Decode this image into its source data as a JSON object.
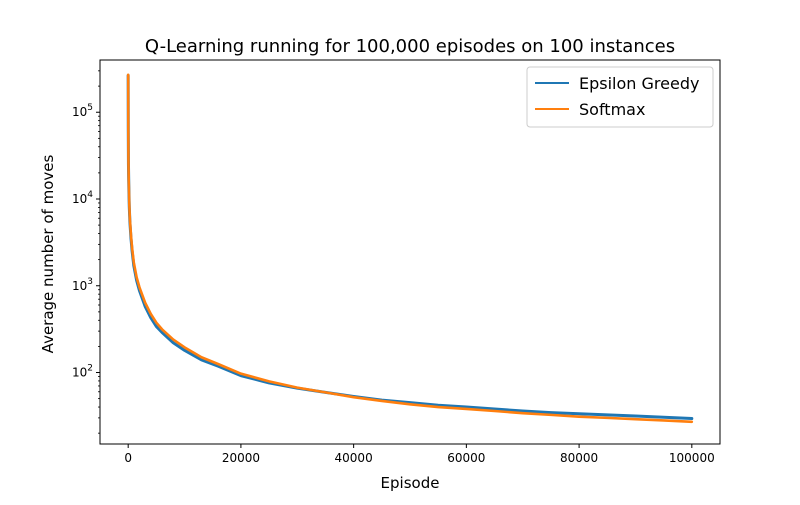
{
  "chart_data": {
    "type": "line",
    "title": "Q-Learning running for 100,000 episodes on 100 instances",
    "xlabel": "Episode",
    "ylabel": "Average number of moves",
    "yscale": "log",
    "xlim": [
      -5000,
      105000
    ],
    "ylim": [
      15,
      400000
    ],
    "xticks": [
      {
        "value": 0,
        "label": "0"
      },
      {
        "value": 20000,
        "label": "20000"
      },
      {
        "value": 40000,
        "label": "40000"
      },
      {
        "value": 60000,
        "label": "60000"
      },
      {
        "value": 80000,
        "label": "80000"
      },
      {
        "value": 100000,
        "label": "100000"
      }
    ],
    "yticks": [
      {
        "value": 100,
        "base": "10",
        "exp": "2"
      },
      {
        "value": 1000,
        "base": "10",
        "exp": "3"
      },
      {
        "value": 10000,
        "base": "10",
        "exp": "4"
      },
      {
        "value": 100000,
        "base": "10",
        "exp": "5"
      }
    ],
    "grid": false,
    "legend_position": "top-right",
    "series": [
      {
        "name": "Epsilon Greedy",
        "color": "#1f77b4",
        "x": [
          0,
          20,
          50,
          100,
          200,
          300,
          500,
          700,
          1000,
          1500,
          2000,
          3000,
          4000,
          5000,
          6000,
          8000,
          10000,
          13000,
          16000,
          20000,
          25000,
          30000,
          35000,
          40000,
          45000,
          50000,
          55000,
          60000,
          65000,
          70000,
          75000,
          80000,
          85000,
          90000,
          95000,
          100000
        ],
        "values": [
          265000,
          60000,
          25000,
          15000,
          8000,
          5500,
          3500,
          2500,
          1700,
          1150,
          880,
          580,
          430,
          340,
          290,
          220,
          180,
          140,
          118,
          92,
          76,
          66,
          59,
          53,
          48,
          45,
          42,
          40,
          38,
          36,
          34.5,
          33.5,
          32.5,
          31.5,
          30.5,
          29.5
        ]
      },
      {
        "name": "Softmax",
        "color": "#ff7f0e",
        "x": [
          0,
          20,
          50,
          100,
          200,
          300,
          500,
          700,
          1000,
          1500,
          2000,
          3000,
          4000,
          5000,
          6000,
          8000,
          10000,
          13000,
          16000,
          20000,
          25000,
          30000,
          35000,
          40000,
          45000,
          50000,
          55000,
          60000,
          65000,
          70000,
          75000,
          80000,
          85000,
          90000,
          95000,
          100000
        ],
        "values": [
          270000,
          62000,
          26000,
          16000,
          8500,
          5900,
          3800,
          2700,
          1850,
          1250,
          960,
          640,
          475,
          375,
          315,
          240,
          195,
          150,
          125,
          97,
          79,
          67,
          59,
          52,
          47,
          43,
          40,
          38,
          36,
          34,
          32.5,
          31,
          30,
          29,
          28,
          27
        ]
      }
    ]
  }
}
